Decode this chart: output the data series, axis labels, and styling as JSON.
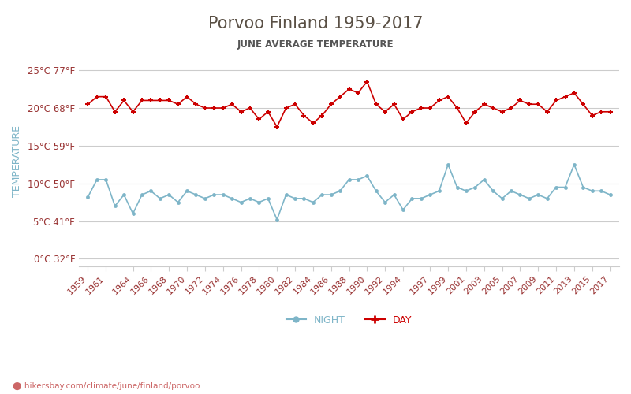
{
  "title": "Porvoo Finland 1959-2017",
  "subtitle": "JUNE AVERAGE TEMPERATURE",
  "ylabel": "TEMPERATURE",
  "footer": "hikersbay.com/climate/june/finland/porvoo",
  "ylim_min": -1,
  "ylim_max": 27,
  "yticks_c": [
    0,
    5,
    10,
    15,
    20,
    25
  ],
  "yticks_f": [
    32,
    41,
    50,
    59,
    68,
    77
  ],
  "background_color": "#ffffff",
  "grid_color": "#cccccc",
  "night_color": "#7eb5c8",
  "day_color": "#cc0000",
  "title_color": "#5a5045",
  "subtitle_color": "#555555",
  "tick_color": "#993333",
  "ylabel_color": "#7eb5c8",
  "footer_color": "#cc6666",
  "legend_night_color": "#7eb5c8",
  "legend_day_color": "#cc0000",
  "night_years": [
    1959,
    1960,
    1961,
    1962,
    1963,
    1964,
    1965,
    1966,
    1967,
    1968,
    1969,
    1970,
    1971,
    1972,
    1973,
    1974,
    1975,
    1976,
    1977,
    1978,
    1979,
    1980,
    1981,
    1982,
    1983,
    1984,
    1985,
    1986,
    1987,
    1988,
    1989,
    1990,
    1991,
    1992,
    1993,
    1994,
    1995,
    1996,
    1997,
    1998,
    1999,
    2000,
    2001,
    2002,
    2003,
    2004,
    2005,
    2006,
    2007,
    2008,
    2009,
    2010,
    2011,
    2012,
    2013,
    2014,
    2015,
    2016,
    2017
  ],
  "night_vals": [
    8.2,
    10.5,
    10.5,
    7.0,
    8.5,
    6.0,
    8.5,
    9.0,
    8.0,
    8.5,
    7.5,
    9.0,
    8.5,
    8.0,
    8.5,
    8.5,
    8.0,
    7.5,
    8.0,
    7.5,
    8.0,
    5.2,
    8.5,
    8.0,
    8.0,
    7.5,
    8.5,
    8.5,
    9.0,
    10.5,
    10.5,
    11.0,
    9.0,
    7.5,
    8.5,
    6.5,
    8.0,
    8.0,
    8.5,
    9.0,
    12.5,
    9.5,
    9.0,
    9.5,
    10.5,
    9.0,
    8.0,
    9.0,
    8.5,
    8.0,
    8.5,
    8.0,
    9.5,
    9.5,
    12.5,
    9.5,
    9.0,
    9.0,
    8.5
  ],
  "day_years": [
    1959,
    1960,
    1961,
    1962,
    1963,
    1964,
    1965,
    1966,
    1967,
    1968,
    1969,
    1970,
    1971,
    1972,
    1973,
    1974,
    1975,
    1976,
    1977,
    1978,
    1979,
    1980,
    1981,
    1982,
    1983,
    1984,
    1985,
    1986,
    1987,
    1988,
    1989,
    1990,
    1991,
    1992,
    1993,
    1994,
    1995,
    1996,
    1997,
    1998,
    1999,
    2000,
    2001,
    2002,
    2003,
    2004,
    2005,
    2006,
    2007,
    2008,
    2009,
    2010,
    2011,
    2012,
    2013,
    2014,
    2015,
    2016,
    2017
  ],
  "day_vals": [
    20.5,
    21.5,
    21.5,
    19.5,
    21.0,
    19.5,
    21.0,
    21.0,
    21.0,
    21.0,
    20.5,
    21.5,
    20.5,
    20.0,
    20.0,
    20.0,
    20.5,
    19.5,
    20.0,
    18.5,
    19.5,
    17.5,
    20.0,
    20.5,
    19.0,
    18.0,
    19.0,
    20.5,
    21.5,
    22.5,
    22.0,
    23.5,
    20.5,
    19.5,
    20.5,
    18.5,
    19.5,
    20.0,
    20.0,
    21.0,
    21.5,
    20.0,
    18.0,
    19.5,
    20.5,
    20.0,
    19.5,
    20.0,
    21.0,
    20.5,
    20.5,
    19.5,
    21.0,
    21.5,
    22.0,
    20.5,
    19.0,
    19.5,
    19.5
  ],
  "xtick_years": [
    1959,
    1961,
    1964,
    1966,
    1968,
    1970,
    1972,
    1974,
    1976,
    1978,
    1980,
    1982,
    1984,
    1986,
    1988,
    1990,
    1992,
    1994,
    1997,
    1999,
    2001,
    2003,
    2005,
    2007,
    2009,
    2011,
    2013,
    2015,
    2017
  ]
}
